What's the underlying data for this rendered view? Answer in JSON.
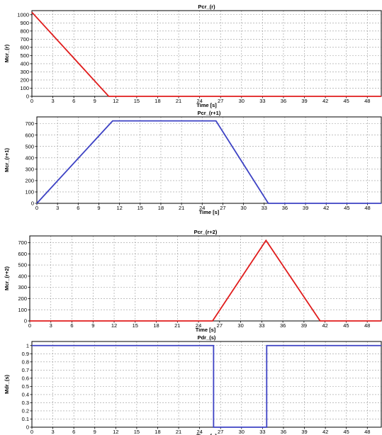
{
  "colors": {
    "red": "#e01c1c",
    "blue": "#3d42c4"
  },
  "chart_data": [
    {
      "type": "line",
      "title": "Pcr_(r)",
      "xlabel": "Time [s]",
      "ylabel": "Mcr_(r)",
      "xlim": [
        0,
        50
      ],
      "ylim": [
        0,
        1050
      ],
      "xticks": [
        0,
        3,
        6,
        9,
        12,
        15,
        18,
        21,
        24,
        27,
        30,
        33,
        36,
        39,
        42,
        45,
        48
      ],
      "xtick_labels": [
        "0",
        "3",
        "6",
        "9",
        "12",
        "15",
        "18",
        "21",
        "24",
        "27",
        "30",
        "33",
        "36",
        "39",
        "42",
        "45",
        "48"
      ],
      "yticks": [
        0,
        100,
        200,
        300,
        400,
        500,
        600,
        700,
        800,
        900,
        1000
      ],
      "ytick_labels": [
        "0",
        "100",
        "200",
        "300",
        "400",
        "500",
        "600",
        "700",
        "800",
        "900",
        "1000"
      ],
      "grid": true,
      "series": [
        {
          "color": "#e01c1c",
          "x": [
            0,
            11,
            50
          ],
          "y": [
            1030,
            0,
            0
          ]
        }
      ]
    },
    {
      "type": "line",
      "title": "Pcr_(r+1)",
      "xlabel": "Time [s]",
      "ylabel": "Mcr_(r+1)",
      "xlim": [
        0,
        50
      ],
      "ylim": [
        0,
        760
      ],
      "xticks": [
        0,
        3,
        6,
        9,
        12,
        15,
        18,
        21,
        24,
        27,
        30,
        33,
        36,
        39,
        42,
        45,
        48
      ],
      "xtick_labels": [
        "0",
        "3",
        "6",
        "9",
        "12",
        "15",
        "18",
        "21",
        "24",
        "27",
        "30",
        "33",
        "36",
        "39",
        "42",
        "45",
        "48"
      ],
      "yticks": [
        0,
        100,
        200,
        300,
        400,
        500,
        600,
        700
      ],
      "ytick_labels": [
        "0",
        "100",
        "200",
        "300",
        "400",
        "500",
        "600",
        "700"
      ],
      "grid": true,
      "series": [
        {
          "color": "#3d42c4",
          "x": [
            0,
            11,
            26,
            33.6,
            50
          ],
          "y": [
            0,
            725,
            725,
            0,
            0
          ]
        }
      ]
    },
    {
      "type": "line",
      "title": "Pcr_(r+2)",
      "xlabel": "Time [s]",
      "ylabel": "Mcr_(r+2)",
      "xlim": [
        0,
        50
      ],
      "ylim": [
        0,
        760
      ],
      "xticks": [
        0,
        3,
        6,
        9,
        12,
        15,
        18,
        21,
        24,
        27,
        30,
        33,
        36,
        39,
        42,
        45,
        48
      ],
      "xtick_labels": [
        "0",
        "3",
        "6",
        "9",
        "12",
        "15",
        "18",
        "21",
        "24",
        "27",
        "30",
        "33",
        "36",
        "39",
        "42",
        "45",
        "48"
      ],
      "yticks": [
        0,
        100,
        200,
        300,
        400,
        500,
        600,
        700
      ],
      "ytick_labels": [
        "0",
        "100",
        "200",
        "300",
        "400",
        "500",
        "600",
        "700"
      ],
      "grid": true,
      "series": [
        {
          "color": "#e01c1c",
          "x": [
            0,
            26,
            33.6,
            41.3,
            50
          ],
          "y": [
            0,
            0,
            720,
            0,
            0
          ]
        }
      ]
    },
    {
      "type": "line",
      "title": "Pdr_(s)",
      "xlabel": "Time [s]",
      "ylabel": "Mdr_(s)",
      "xlim": [
        0,
        50
      ],
      "ylim": [
        0,
        1.05
      ],
      "xticks": [
        0,
        3,
        6,
        9,
        12,
        15,
        18,
        21,
        24,
        27,
        30,
        33,
        36,
        39,
        42,
        45,
        48
      ],
      "xtick_labels": [
        "0",
        "3",
        "6",
        "9",
        "12",
        "15",
        "18",
        "21",
        "24",
        "27",
        "30",
        "33",
        "36",
        "39",
        "42",
        "45",
        "48"
      ],
      "yticks": [
        0,
        0.1,
        0.2,
        0.3,
        0.4,
        0.5,
        0.6,
        0.7,
        0.8,
        0.9,
        1
      ],
      "ytick_labels": [
        "0",
        "0.1",
        "0.2",
        "0.3",
        "0.4",
        "0.5",
        "0.6",
        "0.7",
        "0.8",
        "0.9",
        "1"
      ],
      "grid": true,
      "series": [
        {
          "color": "#3d42c4",
          "x": [
            0,
            26,
            26,
            33.6,
            33.6,
            50
          ],
          "y": [
            1,
            1,
            0,
            0,
            1,
            1
          ]
        }
      ]
    }
  ]
}
